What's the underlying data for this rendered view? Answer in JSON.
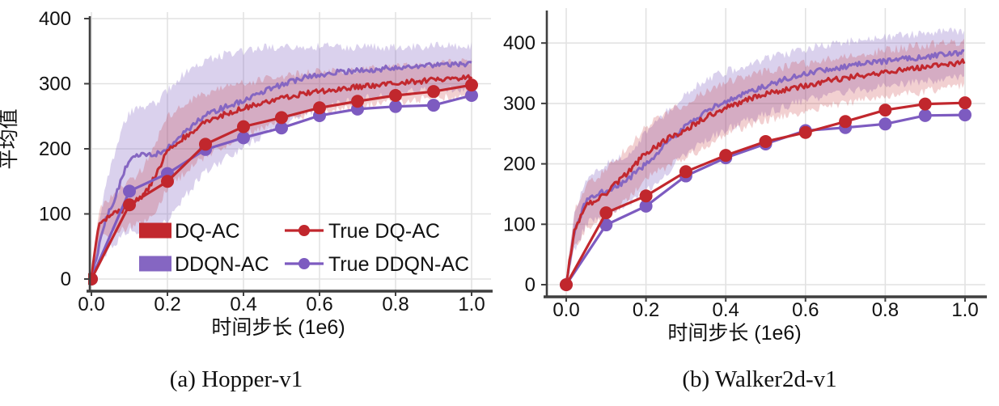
{
  "figure": {
    "background": "#ffffff",
    "grid_color": "#e2e2e2",
    "axis_color": "#3f3f3f",
    "text_color": "#111111"
  },
  "chart_data": [
    {
      "type": "line",
      "id": "hopper",
      "caption": "(a) Hopper-v1",
      "xlabel": "时间步长 (1e6)",
      "ylabel": "平均值",
      "x_ticks": [
        0.0,
        0.2,
        0.4,
        0.6,
        0.8,
        1.0
      ],
      "x_tick_labels": [
        "0.0",
        "0.2",
        "0.4",
        "0.6",
        "0.8",
        "1.0"
      ],
      "y_ticks": [
        0,
        100,
        200,
        300,
        400
      ],
      "y_tick_labels": [
        "0",
        "100",
        "200",
        "300",
        "400"
      ],
      "xlim": [
        0,
        1.05
      ],
      "ylim": [
        -20,
        410
      ],
      "grid": true,
      "legend_position": "lower-center-inside",
      "legend": [
        {
          "label": "DQ-AC",
          "swatch": "patch",
          "color": "#c2282e"
        },
        {
          "label": "DDQN-AC",
          "swatch": "patch",
          "color": "#8566c2"
        },
        {
          "label": "True DQ-AC",
          "swatch": "line_marker",
          "color": "#c1272d"
        },
        {
          "label": "True DDQN-AC",
          "swatch": "line_marker",
          "color": "#7d5bc0"
        }
      ],
      "series": [
        {
          "name": "DDQN-AC",
          "kind": "noisy_band",
          "color": "#8566c2",
          "band_opacity": 0.3,
          "x": [
            0,
            0.02,
            0.04,
            0.06,
            0.08,
            0.1,
            0.12,
            0.15,
            0.17,
            0.2,
            0.25,
            0.3,
            0.35,
            0.4,
            0.45,
            0.5,
            0.55,
            0.6,
            0.65,
            0.7,
            0.75,
            0.8,
            0.85,
            0.9,
            0.95,
            1.0
          ],
          "y": [
            2,
            50,
            95,
            120,
            155,
            185,
            192,
            190,
            192,
            200,
            228,
            252,
            264,
            274,
            288,
            298,
            308,
            314,
            318,
            320,
            322,
            325,
            326,
            328,
            330,
            331
          ],
          "band_lo": [
            0,
            20,
            40,
            55,
            65,
            75,
            72,
            70,
            75,
            90,
            130,
            165,
            185,
            200,
            220,
            235,
            250,
            262,
            270,
            275,
            280,
            285,
            288,
            290,
            292,
            294
          ],
          "band_hi": [
            10,
            90,
            150,
            190,
            230,
            255,
            262,
            265,
            270,
            290,
            320,
            335,
            345,
            350,
            355,
            355,
            356,
            357,
            357,
            356,
            356,
            357,
            357,
            358,
            358,
            358
          ]
        },
        {
          "name": "DQ-AC",
          "kind": "noisy_band",
          "color": "#c2282e",
          "band_opacity": 0.22,
          "x": [
            0,
            0.02,
            0.05,
            0.08,
            0.1,
            0.13,
            0.15,
            0.18,
            0.2,
            0.25,
            0.3,
            0.35,
            0.4,
            0.45,
            0.5,
            0.55,
            0.6,
            0.65,
            0.7,
            0.75,
            0.8,
            0.85,
            0.9,
            0.95,
            1.0
          ],
          "y": [
            2,
            85,
            98,
            105,
            115,
            125,
            140,
            170,
            198,
            220,
            242,
            253,
            262,
            271,
            278,
            284,
            288,
            292,
            295,
            298,
            301,
            303,
            306,
            308,
            311
          ],
          "band_lo": [
            0,
            60,
            70,
            75,
            80,
            85,
            95,
            115,
            140,
            165,
            190,
            205,
            220,
            232,
            242,
            250,
            255,
            260,
            265,
            268,
            272,
            275,
            278,
            280,
            282
          ],
          "band_hi": [
            8,
            108,
            125,
            140,
            150,
            165,
            185,
            225,
            250,
            270,
            285,
            295,
            300,
            306,
            310,
            315,
            318,
            320,
            322,
            324,
            326,
            328,
            330,
            332,
            334
          ]
        },
        {
          "name": "True DDQN-AC",
          "kind": "line_marker",
          "color": "#7d5bc0",
          "x": [
            0,
            0.1,
            0.2,
            0.3,
            0.4,
            0.5,
            0.6,
            0.7,
            0.8,
            0.9,
            1.0
          ],
          "y": [
            0,
            135,
            162,
            199,
            217,
            232,
            251,
            261,
            265,
            267,
            282
          ]
        },
        {
          "name": "True DQ-AC",
          "kind": "line_marker",
          "color": "#c1272d",
          "x": [
            0,
            0.1,
            0.2,
            0.3,
            0.4,
            0.5,
            0.6,
            0.7,
            0.8,
            0.9,
            1.0
          ],
          "y": [
            0,
            114,
            150,
            207,
            234,
            248,
            263,
            273,
            282,
            288,
            298
          ]
        }
      ]
    },
    {
      "type": "line",
      "id": "walker2d",
      "caption": "(b) Walker2d-v1",
      "xlabel": "时间步长 (1e6)",
      "ylabel": "",
      "x_ticks": [
        0.0,
        0.2,
        0.4,
        0.6,
        0.8,
        1.0
      ],
      "x_tick_labels": [
        "0.0",
        "0.2",
        "0.4",
        "0.6",
        "0.8",
        "1.0"
      ],
      "y_ticks": [
        0,
        100,
        200,
        300,
        400
      ],
      "y_tick_labels": [
        "0",
        "100",
        "200",
        "300",
        "400"
      ],
      "xlim": [
        0,
        1.05
      ],
      "ylim": [
        -20,
        455
      ],
      "grid": true,
      "legend": [],
      "series": [
        {
          "name": "DDQN-AC",
          "kind": "noisy_band",
          "color": "#8566c2",
          "band_opacity": 0.3,
          "x": [
            0,
            0.02,
            0.05,
            0.08,
            0.1,
            0.13,
            0.15,
            0.2,
            0.25,
            0.3,
            0.35,
            0.4,
            0.45,
            0.5,
            0.55,
            0.6,
            0.65,
            0.7,
            0.75,
            0.8,
            0.85,
            0.9,
            0.95,
            1.0
          ],
          "y": [
            3,
            85,
            140,
            150,
            156,
            164,
            172,
            200,
            232,
            262,
            287,
            303,
            317,
            329,
            340,
            349,
            356,
            361,
            366,
            370,
            374,
            377,
            381,
            384
          ],
          "band_lo": [
            0,
            55,
            100,
            115,
            120,
            125,
            130,
            155,
            185,
            215,
            240,
            255,
            270,
            283,
            295,
            305,
            312,
            318,
            324,
            328,
            332,
            336,
            340,
            343
          ],
          "band_hi": [
            12,
            115,
            175,
            190,
            200,
            208,
            215,
            250,
            285,
            315,
            340,
            352,
            363,
            373,
            382,
            390,
            396,
            401,
            406,
            410,
            413,
            416,
            419,
            421
          ]
        },
        {
          "name": "DQ-AC",
          "kind": "noisy_band",
          "color": "#c2282e",
          "band_opacity": 0.22,
          "x": [
            0,
            0.02,
            0.05,
            0.08,
            0.1,
            0.15,
            0.2,
            0.25,
            0.3,
            0.35,
            0.4,
            0.45,
            0.5,
            0.55,
            0.6,
            0.65,
            0.7,
            0.75,
            0.8,
            0.85,
            0.9,
            0.95,
            1.0
          ],
          "y": [
            3,
            90,
            130,
            143,
            152,
            183,
            218,
            240,
            257,
            277,
            293,
            305,
            315,
            323,
            330,
            337,
            342,
            347,
            352,
            356,
            360,
            364,
            369
          ],
          "band_lo": [
            0,
            60,
            95,
            105,
            110,
            140,
            175,
            195,
            210,
            230,
            250,
            262,
            272,
            280,
            288,
            295,
            300,
            305,
            310,
            315,
            320,
            325,
            330
          ],
          "band_hi": [
            10,
            120,
            165,
            180,
            190,
            225,
            260,
            285,
            300,
            320,
            335,
            345,
            352,
            360,
            366,
            372,
            378,
            383,
            388,
            392,
            396,
            400,
            404
          ]
        },
        {
          "name": "True DDQN-AC",
          "kind": "line_marker",
          "color": "#7d5bc0",
          "x": [
            0,
            0.1,
            0.2,
            0.3,
            0.4,
            0.5,
            0.6,
            0.7,
            0.8,
            0.9,
            1.0
          ],
          "y": [
            0,
            99,
            130,
            180,
            210,
            233,
            255,
            260,
            266,
            280,
            281
          ]
        },
        {
          "name": "True DQ-AC",
          "kind": "line_marker",
          "color": "#c1272d",
          "x": [
            0,
            0.1,
            0.2,
            0.3,
            0.4,
            0.5,
            0.6,
            0.7,
            0.8,
            0.9,
            1.0
          ],
          "y": [
            0,
            119,
            147,
            187,
            214,
            237,
            252,
            270,
            289,
            299,
            301
          ]
        }
      ]
    }
  ]
}
